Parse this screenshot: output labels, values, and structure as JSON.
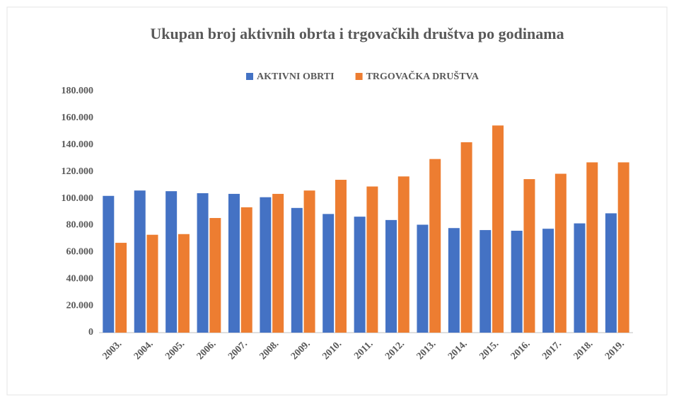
{
  "chart_data": {
    "type": "bar",
    "title": "Ukupan broj aktivnih obrta i trgovačkih društva po godinama",
    "categories": [
      "2003.",
      "2004.",
      "2005.",
      "2006.",
      "2007.",
      "2008.",
      "2009.",
      "2010.",
      "2011.",
      "2012.",
      "2013.",
      "2014.",
      "2015.",
      "2016.",
      "2017.",
      "2018.",
      "2019."
    ],
    "series": [
      {
        "name": "AKTIVNI OBRTI",
        "color": "#4472c4",
        "values": [
          102000,
          106000,
          105500,
          104000,
          103500,
          101000,
          93000,
          88500,
          86500,
          84000,
          80500,
          78000,
          76500,
          76000,
          77500,
          81500,
          89000
        ]
      },
      {
        "name": "TRGOVAČKA DRUŠTVA",
        "color": "#ed7d31",
        "values": [
          67000,
          73000,
          73500,
          85500,
          93500,
          103500,
          106000,
          114000,
          109000,
          116500,
          129500,
          142000,
          154500,
          114500,
          118500,
          127000,
          127000
        ]
      }
    ],
    "ylim": [
      0,
      180000
    ],
    "yticks": [
      0,
      {
        "value": 20000,
        "label": "20.000"
      },
      {
        "value": 40000,
        "label": "40.000"
      },
      {
        "value": 60000,
        "label": "60.000"
      },
      {
        "value": 80000,
        "label": "80.000"
      },
      {
        "value": 100000,
        "label": "100.000"
      },
      {
        "value": 120000,
        "label": "120.000"
      },
      {
        "value": 140000,
        "label": "140.000"
      },
      {
        "value": 160000,
        "label": "160.000"
      },
      {
        "value": 180000,
        "label": "180.000"
      }
    ],
    "legend": "top"
  }
}
